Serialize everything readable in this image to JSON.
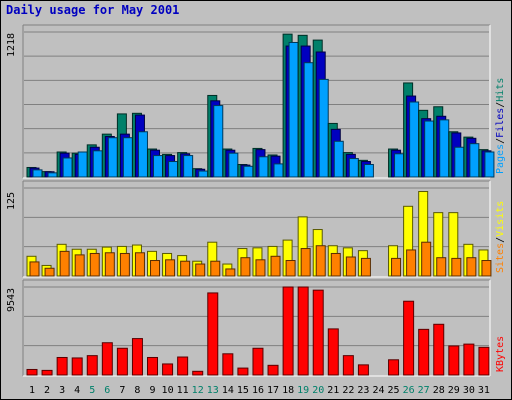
{
  "chart_data": {
    "title": "Daily usage for May 2001",
    "type": "bar",
    "days": [
      "1",
      "2",
      "3",
      "4",
      "5",
      "6",
      "7",
      "8",
      "9",
      "10",
      "11",
      "12",
      "13",
      "14",
      "15",
      "16",
      "17",
      "18",
      "19",
      "20",
      "21",
      "22",
      "23",
      "24",
      "25",
      "26",
      "27",
      "28",
      "29",
      "30",
      "31"
    ],
    "weekend_days": [
      "5",
      "6",
      "12",
      "13",
      "19",
      "20",
      "26",
      "27"
    ],
    "panels": [
      {
        "name": "hits-files-pages",
        "ymax_label": "1218",
        "ymax": 1218,
        "legend": [
          "Pages",
          "/",
          "Files",
          "/",
          "Hits"
        ],
        "legend_colors": [
          "#00a0ff",
          "#000000",
          "#0000c0",
          "#000000",
          "#00806a"
        ],
        "series": [
          {
            "name": "Hits",
            "color": "#00806a",
            "values": [
              80,
              45,
              210,
              200,
              270,
              360,
              530,
              535,
              235,
              190,
              205,
              70,
              685,
              235,
              105,
              240,
              185,
              1200,
              1190,
              1150,
              450,
              205,
              140,
              0,
              235,
              790,
              560,
              590,
              380,
              335,
              230
            ]
          },
          {
            "name": "Files",
            "color": "#0000c0",
            "values": [
              75,
              44,
              200,
              190,
              250,
              340,
              360,
              520,
              225,
              180,
              195,
              65,
              640,
              225,
              100,
              230,
              175,
              1100,
              1100,
              1050,
              400,
              190,
              130,
              0,
              225,
              680,
              490,
              510,
              370,
              325,
              220
            ]
          },
          {
            "name": "Pages",
            "color": "#00a0ff",
            "values": [
              60,
              35,
              160,
              210,
              220,
              330,
              330,
              380,
              180,
              130,
              180,
              50,
              600,
              200,
              90,
              170,
              110,
              1130,
              960,
              820,
              300,
              155,
              105,
              0,
              195,
              630,
              470,
              480,
              250,
              280,
              210
            ]
          }
        ]
      },
      {
        "name": "visits-sites",
        "ymax_label": "125",
        "ymax": 125,
        "legend": [
          "Sites",
          "/",
          "Visits"
        ],
        "legend_colors": [
          "#ff8000",
          "#000000",
          "#ffff00"
        ],
        "series": [
          {
            "name": "Visits",
            "color": "#ffff00",
            "values": [
              28,
              15,
              45,
              38,
              38,
              41,
              42,
              44,
              35,
              32,
              29,
              21,
              48,
              17,
              39,
              40,
              42,
              51,
              84,
              66,
              43,
              40,
              36,
              0,
              43,
              99,
              120,
              90,
              90,
              45,
              37
            ]
          },
          {
            "name": "Sites",
            "color": "#ff8000",
            "values": [
              20,
              11,
              35,
              30,
              32,
              33,
              32,
              33,
              22,
              23,
              21,
              17,
              21,
              10,
              26,
              23,
              28,
              22,
              39,
              43,
              32,
              27,
              25,
              0,
              25,
              37,
              48,
              26,
              25,
              26,
              22
            ]
          }
        ]
      },
      {
        "name": "kbytes",
        "ymax_label": "9543",
        "ymax": 9543,
        "legend": [
          "KBytes"
        ],
        "legend_colors": [
          "#ff0000"
        ],
        "series": [
          {
            "name": "KBytes",
            "color": "#ff0000",
            "values": [
              600,
              500,
              1900,
              1850,
              2100,
              3500,
              2900,
              3950,
              1900,
              1200,
              1950,
              400,
              8900,
              2300,
              750,
              2900,
              1050,
              9543,
              9543,
              9200,
              5000,
              2100,
              1100,
              0,
              1650,
              8000,
              4950,
              5500,
              3150,
              3350,
              3000
            ]
          }
        ]
      }
    ]
  }
}
